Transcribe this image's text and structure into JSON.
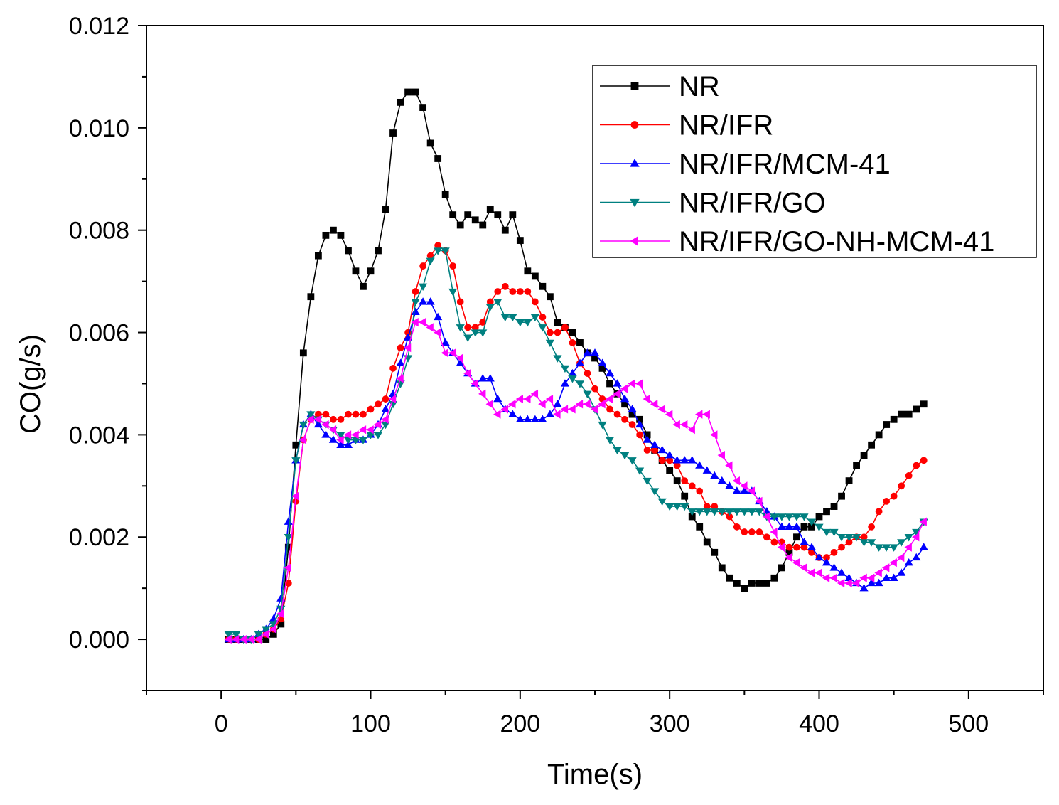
{
  "chart_data": {
    "type": "line",
    "title": "",
    "xlabel": "Time(s)",
    "ylabel": "CO(g/s)",
    "xlim": [
      -50,
      550
    ],
    "ylim": [
      -0.001,
      0.012
    ],
    "xticks": [
      0,
      100,
      200,
      300,
      400,
      500
    ],
    "yticks": [
      0.0,
      0.002,
      0.004,
      0.006,
      0.008,
      0.01,
      0.012
    ],
    "xtick_labels": [
      "0",
      "100",
      "200",
      "300",
      "400",
      "500"
    ],
    "ytick_labels": [
      "0.000",
      "0.002",
      "0.004",
      "0.006",
      "0.008",
      "0.010",
      "0.012"
    ],
    "legend_position": "top-right",
    "grid": false,
    "series": [
      {
        "name": "NR",
        "color": "#000000",
        "marker": "square",
        "x": [
          5,
          10,
          15,
          20,
          25,
          30,
          35,
          40,
          45,
          50,
          55,
          60,
          65,
          70,
          75,
          80,
          85,
          90,
          95,
          100,
          105,
          110,
          115,
          120,
          125,
          130,
          135,
          140,
          145,
          150,
          155,
          160,
          165,
          170,
          175,
          180,
          185,
          190,
          195,
          200,
          205,
          210,
          215,
          220,
          225,
          230,
          235,
          240,
          245,
          250,
          255,
          260,
          265,
          270,
          275,
          280,
          285,
          290,
          295,
          300,
          305,
          310,
          315,
          320,
          325,
          330,
          335,
          340,
          345,
          350,
          355,
          360,
          365,
          370,
          375,
          380,
          385,
          390,
          395,
          400,
          405,
          410,
          415,
          420,
          425,
          430,
          435,
          440,
          445,
          450,
          455,
          460,
          465,
          470
        ],
        "y": [
          0.0,
          0.0,
          0.0,
          0.0,
          0.0,
          0.0,
          0.0001,
          0.0003,
          0.0018,
          0.0038,
          0.0056,
          0.0067,
          0.0075,
          0.0079,
          0.008,
          0.0079,
          0.0076,
          0.0072,
          0.0069,
          0.0072,
          0.0076,
          0.0084,
          0.0099,
          0.0105,
          0.0107,
          0.0107,
          0.0104,
          0.0097,
          0.0094,
          0.0087,
          0.0083,
          0.0081,
          0.0083,
          0.0082,
          0.0081,
          0.0084,
          0.0083,
          0.008,
          0.0083,
          0.0078,
          0.0072,
          0.0071,
          0.0069,
          0.0067,
          0.0062,
          0.0061,
          0.006,
          0.0058,
          0.0056,
          0.0055,
          0.0053,
          0.005,
          0.0048,
          0.0046,
          0.0044,
          0.0043,
          0.004,
          0.0037,
          0.0035,
          0.0033,
          0.0031,
          0.0028,
          0.0024,
          0.0022,
          0.0019,
          0.0017,
          0.0014,
          0.0012,
          0.0011,
          0.001,
          0.0011,
          0.0011,
          0.0011,
          0.0012,
          0.0014,
          0.0017,
          0.002,
          0.0022,
          0.0022,
          0.0024,
          0.0025,
          0.0026,
          0.0028,
          0.0031,
          0.0034,
          0.0036,
          0.0038,
          0.004,
          0.0042,
          0.0043,
          0.0044,
          0.0044,
          0.0045,
          0.0046
        ]
      },
      {
        "name": "NR/IFR",
        "color": "#ff0000",
        "marker": "circle",
        "x": [
          5,
          10,
          15,
          20,
          25,
          30,
          35,
          40,
          45,
          50,
          55,
          60,
          65,
          70,
          75,
          80,
          85,
          90,
          95,
          100,
          105,
          110,
          115,
          120,
          125,
          130,
          135,
          140,
          145,
          150,
          155,
          160,
          165,
          170,
          175,
          180,
          185,
          190,
          195,
          200,
          205,
          210,
          215,
          220,
          225,
          230,
          235,
          240,
          245,
          250,
          255,
          260,
          265,
          270,
          275,
          280,
          285,
          290,
          295,
          300,
          305,
          310,
          315,
          320,
          325,
          330,
          335,
          340,
          345,
          350,
          355,
          360,
          365,
          370,
          375,
          380,
          385,
          390,
          395,
          400,
          405,
          410,
          415,
          420,
          425,
          430,
          435,
          440,
          445,
          450,
          455,
          460,
          465,
          470
        ],
        "y": [
          0.0,
          0.0,
          0.0,
          0.0,
          0.0,
          0.0001,
          0.0002,
          0.0004,
          0.0011,
          0.0027,
          0.0039,
          0.0043,
          0.0044,
          0.0044,
          0.0043,
          0.0043,
          0.0044,
          0.0044,
          0.0044,
          0.0045,
          0.0046,
          0.0047,
          0.0053,
          0.0057,
          0.006,
          0.0068,
          0.0073,
          0.0075,
          0.0077,
          0.0076,
          0.0073,
          0.0066,
          0.0061,
          0.0061,
          0.0062,
          0.0066,
          0.0068,
          0.0069,
          0.0068,
          0.0068,
          0.0068,
          0.0066,
          0.0063,
          0.006,
          0.006,
          0.0061,
          0.0058,
          0.0054,
          0.0052,
          0.0049,
          0.0047,
          0.0045,
          0.0044,
          0.0043,
          0.0042,
          0.004,
          0.0037,
          0.0037,
          0.0035,
          0.0035,
          0.0034,
          0.0031,
          0.003,
          0.0029,
          0.0026,
          0.0026,
          0.0025,
          0.0024,
          0.0022,
          0.0021,
          0.0021,
          0.0021,
          0.002,
          0.0019,
          0.0019,
          0.0018,
          0.0018,
          0.0018,
          0.0017,
          0.0016,
          0.0016,
          0.0017,
          0.0018,
          0.0019,
          0.002,
          0.002,
          0.0022,
          0.0025,
          0.0027,
          0.0028,
          0.003,
          0.0032,
          0.0034,
          0.0035
        ]
      },
      {
        "name": "NR/IFR/MCM-41",
        "color": "#0000ff",
        "marker": "triangle-up",
        "x": [
          5,
          10,
          15,
          20,
          25,
          30,
          35,
          40,
          45,
          50,
          55,
          60,
          65,
          70,
          75,
          80,
          85,
          90,
          95,
          100,
          105,
          110,
          115,
          120,
          125,
          130,
          135,
          140,
          145,
          150,
          155,
          160,
          165,
          170,
          175,
          180,
          185,
          190,
          195,
          200,
          205,
          210,
          215,
          220,
          225,
          230,
          235,
          240,
          245,
          250,
          255,
          260,
          265,
          270,
          275,
          280,
          285,
          290,
          295,
          300,
          305,
          310,
          315,
          320,
          325,
          330,
          335,
          340,
          345,
          350,
          355,
          360,
          365,
          370,
          375,
          380,
          385,
          390,
          395,
          400,
          405,
          410,
          415,
          420,
          425,
          430,
          435,
          440,
          445,
          450,
          455,
          460,
          465,
          470
        ],
        "y": [
          0.0,
          0.0,
          0.0,
          0.0,
          0.0001,
          0.0002,
          0.0004,
          0.0008,
          0.0023,
          0.0035,
          0.0042,
          0.0044,
          0.0042,
          0.004,
          0.0039,
          0.0038,
          0.0038,
          0.0039,
          0.0039,
          0.004,
          0.0042,
          0.0045,
          0.0048,
          0.0054,
          0.0059,
          0.0064,
          0.0066,
          0.0066,
          0.0063,
          0.0058,
          0.0056,
          0.0054,
          0.0052,
          0.005,
          0.0051,
          0.0051,
          0.0047,
          0.0045,
          0.0044,
          0.0043,
          0.0043,
          0.0043,
          0.0043,
          0.0044,
          0.0046,
          0.005,
          0.0052,
          0.0054,
          0.0056,
          0.0056,
          0.0054,
          0.0052,
          0.005,
          0.0047,
          0.0045,
          0.0042,
          0.0039,
          0.0038,
          0.0037,
          0.0036,
          0.0035,
          0.0035,
          0.0035,
          0.0034,
          0.0033,
          0.0032,
          0.0031,
          0.003,
          0.0029,
          0.0029,
          0.0029,
          0.0027,
          0.0025,
          0.0024,
          0.0022,
          0.0022,
          0.0022,
          0.0019,
          0.0018,
          0.0016,
          0.0015,
          0.0014,
          0.0013,
          0.0012,
          0.0011,
          0.001,
          0.0011,
          0.0011,
          0.0012,
          0.0012,
          0.0013,
          0.0015,
          0.0016,
          0.0018
        ]
      },
      {
        "name": "NR/IFR/GO",
        "color": "#008080",
        "marker": "triangle-down",
        "x": [
          5,
          10,
          15,
          20,
          25,
          30,
          35,
          40,
          45,
          50,
          55,
          60,
          65,
          70,
          75,
          80,
          85,
          90,
          95,
          100,
          105,
          110,
          115,
          120,
          125,
          130,
          135,
          140,
          145,
          150,
          155,
          160,
          165,
          170,
          175,
          180,
          185,
          190,
          195,
          200,
          205,
          210,
          215,
          220,
          225,
          230,
          235,
          240,
          245,
          250,
          255,
          260,
          265,
          270,
          275,
          280,
          285,
          290,
          295,
          300,
          305,
          310,
          315,
          320,
          325,
          330,
          335,
          340,
          345,
          350,
          355,
          360,
          365,
          370,
          375,
          380,
          385,
          390,
          395,
          400,
          405,
          410,
          415,
          420,
          425,
          430,
          435,
          440,
          445,
          450,
          455,
          460,
          465,
          470
        ],
        "y": [
          0.0001,
          0.0001,
          0.0,
          0.0,
          0.0001,
          0.0002,
          0.0003,
          0.0006,
          0.002,
          0.0035,
          0.0042,
          0.0044,
          0.0043,
          0.0042,
          0.0041,
          0.004,
          0.0039,
          0.0039,
          0.0039,
          0.004,
          0.004,
          0.0042,
          0.0046,
          0.005,
          0.0055,
          0.0066,
          0.0069,
          0.0074,
          0.0076,
          0.0076,
          0.0068,
          0.0061,
          0.0059,
          0.006,
          0.006,
          0.0065,
          0.0066,
          0.0063,
          0.0063,
          0.0062,
          0.0062,
          0.0063,
          0.0061,
          0.0058,
          0.0055,
          0.0053,
          0.0051,
          0.005,
          0.0048,
          0.0045,
          0.0042,
          0.0039,
          0.0037,
          0.0036,
          0.0035,
          0.0033,
          0.0031,
          0.0029,
          0.0027,
          0.0026,
          0.0026,
          0.0026,
          0.0025,
          0.0025,
          0.0025,
          0.0025,
          0.0025,
          0.0025,
          0.0025,
          0.0025,
          0.0025,
          0.0025,
          0.0024,
          0.0024,
          0.0024,
          0.0024,
          0.0024,
          0.0024,
          0.0023,
          0.0022,
          0.0021,
          0.0021,
          0.002,
          0.002,
          0.002,
          0.0019,
          0.0019,
          0.0018,
          0.0018,
          0.0018,
          0.0019,
          0.002,
          0.0021,
          0.0023
        ]
      },
      {
        "name": "NR/IFR/GO-NH-MCM-41",
        "color": "#ff00ff",
        "marker": "triangle-left",
        "x": [
          5,
          10,
          15,
          20,
          25,
          30,
          35,
          40,
          45,
          50,
          55,
          60,
          65,
          70,
          75,
          80,
          85,
          90,
          95,
          100,
          105,
          110,
          115,
          120,
          125,
          130,
          135,
          140,
          145,
          150,
          155,
          160,
          165,
          170,
          175,
          180,
          185,
          190,
          195,
          200,
          205,
          210,
          215,
          220,
          225,
          230,
          235,
          240,
          245,
          250,
          255,
          260,
          265,
          270,
          275,
          280,
          285,
          290,
          295,
          300,
          305,
          310,
          315,
          320,
          325,
          330,
          335,
          340,
          345,
          350,
          355,
          360,
          365,
          370,
          375,
          380,
          385,
          390,
          395,
          400,
          405,
          410,
          415,
          420,
          425,
          430,
          435,
          440,
          445,
          450,
          455,
          460,
          465,
          470
        ],
        "y": [
          0.0,
          0.0,
          0.0,
          0.0,
          0.0,
          0.0001,
          0.0002,
          0.0005,
          0.0014,
          0.0028,
          0.0039,
          0.0043,
          0.0043,
          0.0042,
          0.0041,
          0.0039,
          0.004,
          0.004,
          0.0041,
          0.0041,
          0.0042,
          0.0043,
          0.0047,
          0.0051,
          0.0057,
          0.0062,
          0.0062,
          0.0061,
          0.006,
          0.0056,
          0.0056,
          0.0055,
          0.0052,
          0.005,
          0.0048,
          0.0046,
          0.0044,
          0.0045,
          0.0046,
          0.0047,
          0.0047,
          0.0048,
          0.0046,
          0.0047,
          0.0044,
          0.0045,
          0.0045,
          0.0046,
          0.0046,
          0.0045,
          0.0046,
          0.0047,
          0.0048,
          0.0049,
          0.005,
          0.005,
          0.0047,
          0.0046,
          0.0045,
          0.0044,
          0.0042,
          0.0042,
          0.0041,
          0.0044,
          0.0044,
          0.004,
          0.0036,
          0.0034,
          0.0031,
          0.003,
          0.0029,
          0.0027,
          0.0024,
          0.0021,
          0.0018,
          0.0016,
          0.0015,
          0.0014,
          0.0013,
          0.0013,
          0.0012,
          0.0012,
          0.0011,
          0.0011,
          0.0011,
          0.0012,
          0.0012,
          0.0013,
          0.0014,
          0.0015,
          0.0016,
          0.0018,
          0.002,
          0.0023
        ]
      }
    ]
  }
}
